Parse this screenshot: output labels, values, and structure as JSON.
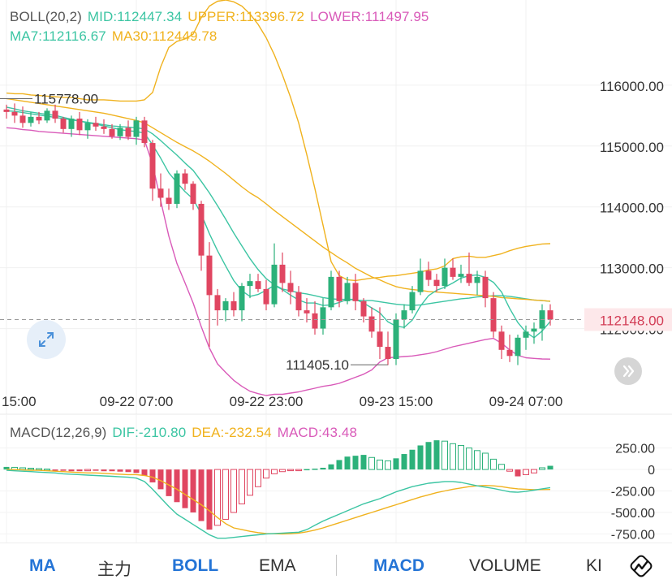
{
  "legend": {
    "boll_label": "BOLL(20,2)",
    "mid": "MID:112447.34",
    "upper": "UPPER:113396.72",
    "lower": "LOWER:111497.95",
    "ma7": "MA7:112116.67",
    "ma30": "MA30:112449.78",
    "macd_label": "MACD(12,26,9)",
    "dif": "DIF:-210.80",
    "dea": "DEA:-232.54",
    "macd": "MACD:43.48"
  },
  "annotations": {
    "high_label": "115778.00",
    "low_label": "111405.10",
    "current_price": "112148.00"
  },
  "tabs": {
    "ma": "MA",
    "main": "主力",
    "boll": "BOLL",
    "ema": "EMA",
    "macd": "MACD",
    "volume": "VOLUME",
    "kdj": "KI"
  },
  "icons": {
    "expand": "expand-arrows-icon",
    "scroll_right": "double-chevron-right-icon",
    "drawing": "drawing-tool-icon"
  },
  "colors": {
    "up": "#2cb17a",
    "down": "#e04661",
    "ma7": "#3cc5a3",
    "ma30": "#f0b21e",
    "upper": "#f0b21e",
    "mid": "#3cc5a3",
    "lower": "#d95ab9",
    "dif": "#3cc5a3",
    "dea": "#f0b21e",
    "accent": "#2474d6",
    "current_price_bg": "#fde8ea"
  },
  "chart_data": [
    {
      "type": "candlestick",
      "y_ticks": [
        "116000.00",
        "115000.00",
        "114000.00",
        "113000.00",
        "112000.00"
      ],
      "y_tick_values": [
        116000,
        115000,
        114000,
        113000,
        112000
      ],
      "ylim": [
        111100,
        117400
      ],
      "x_ticks": [
        "15:00",
        "09-22 07:00",
        "09-22 23:00",
        "09-23 15:00",
        "09-24 07:00"
      ],
      "x_tick_index": [
        0,
        16,
        32,
        48,
        64
      ],
      "current_price": 112148,
      "high_marker": 115778,
      "low_marker": 111405.1,
      "candles": [
        [
          115600,
          115680,
          115450,
          115560
        ],
        [
          115560,
          115700,
          115380,
          115500
        ],
        [
          115500,
          115650,
          115300,
          115380
        ],
        [
          115380,
          115560,
          115320,
          115480
        ],
        [
          115480,
          115560,
          115360,
          115420
        ],
        [
          115420,
          115620,
          115380,
          115580
        ],
        [
          115580,
          115680,
          115380,
          115450
        ],
        [
          115450,
          115480,
          115220,
          115280
        ],
        [
          115280,
          115500,
          115150,
          115450
        ],
        [
          115450,
          115560,
          115180,
          115260
        ],
        [
          115260,
          115440,
          115120,
          115380
        ],
        [
          115380,
          115480,
          115250,
          115320
        ],
        [
          115320,
          115440,
          115200,
          115280
        ],
        [
          115280,
          115360,
          115120,
          115160
        ],
        [
          115160,
          115360,
          115100,
          115300
        ],
        [
          115300,
          115420,
          115100,
          115150
        ],
        [
          115150,
          115480,
          115020,
          115420
        ],
        [
          115420,
          115480,
          114980,
          115050
        ],
        [
          115050,
          115100,
          114100,
          114300
        ],
        [
          114300,
          114550,
          114000,
          114150
        ],
        [
          114150,
          114300,
          113950,
          114050
        ],
        [
          114050,
          114600,
          113980,
          114550
        ],
        [
          114550,
          114620,
          114280,
          114380
        ],
        [
          114380,
          114420,
          113950,
          114050
        ],
        [
          114050,
          114100,
          112950,
          113200
        ],
        [
          113200,
          113420,
          111700,
          112550
        ],
        [
          112550,
          112650,
          112050,
          112300
        ],
        [
          112300,
          112500,
          112120,
          112450
        ],
        [
          112450,
          112600,
          112200,
          112300
        ],
        [
          112300,
          112750,
          112120,
          112700
        ],
        [
          112700,
          112900,
          112500,
          112780
        ],
        [
          112780,
          112900,
          112600,
          112650
        ],
        [
          112650,
          112800,
          112300,
          112400
        ],
        [
          112400,
          113400,
          112350,
          113050
        ],
        [
          113050,
          113250,
          112600,
          112750
        ],
        [
          112750,
          112950,
          112400,
          112600
        ],
        [
          112600,
          112700,
          112200,
          112300
        ],
        [
          112300,
          112500,
          112100,
          112250
        ],
        [
          112250,
          112450,
          111900,
          112000
        ],
        [
          112000,
          112500,
          111900,
          112350
        ],
        [
          112350,
          112950,
          112300,
          112850
        ],
        [
          112850,
          112950,
          112350,
          112450
        ],
        [
          112450,
          112850,
          112400,
          112750
        ],
        [
          112750,
          112900,
          112300,
          112450
        ],
        [
          112450,
          112500,
          112100,
          112200
        ],
        [
          112200,
          112350,
          111850,
          111950
        ],
        [
          111950,
          112350,
          111500,
          111700
        ],
        [
          111700,
          111950,
          111400,
          111500
        ],
        [
          111500,
          112250,
          111400,
          112150
        ],
        [
          112150,
          112400,
          112000,
          112300
        ],
        [
          112300,
          112700,
          112250,
          112600
        ],
        [
          112600,
          113150,
          112550,
          112950
        ],
        [
          112950,
          113100,
          112700,
          112800
        ],
        [
          112800,
          112900,
          112600,
          112700
        ],
        [
          112700,
          113150,
          112650,
          113000
        ],
        [
          113000,
          113150,
          112800,
          112850
        ],
        [
          112850,
          113050,
          112750,
          112900
        ],
        [
          112900,
          113250,
          112700,
          112750
        ],
        [
          112750,
          112950,
          112550,
          112850
        ],
        [
          112850,
          112950,
          112350,
          112500
        ],
        [
          112500,
          112600,
          111850,
          111950
        ],
        [
          111950,
          112050,
          111500,
          111650
        ],
        [
          111650,
          111900,
          111450,
          111550
        ],
        [
          111550,
          111900,
          111400,
          111850
        ],
        [
          111850,
          112050,
          111650,
          111950
        ],
        [
          111950,
          112100,
          111750,
          112000
        ],
        [
          112000,
          112400,
          111800,
          112300
        ],
        [
          112300,
          112400,
          112050,
          112148
        ]
      ],
      "ma7": [
        115640,
        115610,
        115580,
        115560,
        115540,
        115520,
        115505,
        115470,
        115440,
        115410,
        115380,
        115360,
        115330,
        115300,
        115270,
        115250,
        115240,
        115210,
        115020,
        114800,
        114560,
        114400,
        114250,
        114130,
        113880,
        113560,
        113280,
        113030,
        112790,
        112620,
        112530,
        112560,
        112630,
        112710,
        112640,
        112550,
        112470,
        112420,
        112420,
        112380,
        112390,
        112430,
        112480,
        112480,
        112420,
        112340,
        112260,
        112110,
        112040,
        112020,
        112140,
        112370,
        112540,
        112630,
        112680,
        112750,
        112830,
        112870,
        112880,
        112840,
        112760,
        112600,
        112330,
        112100,
        111940,
        111850,
        111960,
        112117
      ],
      "ma30": [
        115780,
        115760,
        115740,
        115720,
        115700,
        115680,
        115660,
        115640,
        115620,
        115600,
        115580,
        115560,
        115540,
        115510,
        115480,
        115450,
        115420,
        115380,
        115300,
        115220,
        115140,
        115060,
        114990,
        114920,
        114840,
        114750,
        114650,
        114550,
        114440,
        114330,
        114230,
        114150,
        114050,
        113940,
        113840,
        113740,
        113640,
        113540,
        113440,
        113340,
        113250,
        113160,
        113080,
        112990,
        112920,
        112850,
        112800,
        112740,
        112690,
        112660,
        112640,
        112630,
        112610,
        112600,
        112590,
        112580,
        112570,
        112560,
        112550,
        112540,
        112530,
        112510,
        112500,
        112490,
        112480,
        112470,
        112460,
        112450
      ],
      "upper": [
        115870,
        115860,
        115860,
        115840,
        115830,
        115820,
        115810,
        115800,
        115800,
        115780,
        115760,
        115760,
        115760,
        115750,
        115740,
        115740,
        115740,
        115760,
        115880,
        116300,
        116620,
        116720,
        116760,
        116840,
        117110,
        117300,
        117380,
        117400,
        117370,
        117300,
        117170,
        117000,
        116780,
        116500,
        116170,
        115800,
        115380,
        114860,
        114300,
        113700,
        113100,
        112870,
        112800,
        112790,
        112810,
        112830,
        112840,
        112860,
        112870,
        112890,
        112910,
        112930,
        112960,
        112980,
        113030,
        113150,
        113180,
        113190,
        113170,
        113170,
        113200,
        113230,
        113280,
        113320,
        113350,
        113370,
        113390,
        113396
      ],
      "mid": [
        115580,
        115570,
        115550,
        115530,
        115510,
        115490,
        115470,
        115450,
        115430,
        115410,
        115390,
        115370,
        115350,
        115330,
        115320,
        115310,
        115300,
        115280,
        115200,
        115090,
        114970,
        114850,
        114720,
        114600,
        114420,
        114230,
        114020,
        113800,
        113570,
        113360,
        113150,
        112970,
        112820,
        112720,
        112650,
        112620,
        112590,
        112570,
        112540,
        112510,
        112490,
        112480,
        112480,
        112470,
        112460,
        112460,
        112440,
        112420,
        112400,
        112390,
        112380,
        112390,
        112410,
        112430,
        112450,
        112470,
        112490,
        112500,
        112520,
        112530,
        112540,
        112540,
        112530,
        112510,
        112490,
        112470,
        112460,
        112447
      ],
      "lower": [
        115300,
        115290,
        115270,
        115260,
        115240,
        115230,
        115220,
        115210,
        115200,
        115190,
        115180,
        115170,
        115160,
        115150,
        115140,
        115130,
        115120,
        115100,
        114700,
        114100,
        113520,
        113070,
        112750,
        112420,
        112030,
        111680,
        111420,
        111280,
        111150,
        111050,
        110970,
        110930,
        110900,
        110920,
        110920,
        110940,
        110960,
        110990,
        111020,
        111050,
        111070,
        111100,
        111150,
        111200,
        111250,
        111320,
        111450,
        111520,
        111530,
        111540,
        111550,
        111570,
        111590,
        111620,
        111660,
        111700,
        111730,
        111760,
        111790,
        111820,
        111840,
        111760,
        111650,
        111560,
        111520,
        111510,
        111500,
        111498
      ]
    },
    {
      "type": "macd",
      "y_ticks": [
        "250.00",
        "0",
        "-250.00",
        "-500.00",
        "-750.00"
      ],
      "y_tick_values": [
        250,
        0,
        -250,
        -500,
        -750
      ],
      "ylim": [
        -850,
        360
      ],
      "hist": [
        30,
        25,
        20,
        15,
        10,
        5,
        -5,
        -15,
        -20,
        -20,
        -15,
        -15,
        -20,
        -20,
        -25,
        -30,
        -40,
        -70,
        -150,
        -230,
        -310,
        -380,
        -450,
        -500,
        -600,
        -700,
        -650,
        -580,
        -500,
        -400,
        -300,
        -200,
        -100,
        -50,
        -25,
        -10,
        -5,
        5,
        10,
        20,
        60,
        110,
        150,
        160,
        170,
        140,
        110,
        100,
        130,
        180,
        230,
        280,
        320,
        340,
        330,
        300,
        280,
        250,
        220,
        190,
        120,
        60,
        -20,
        -80,
        -60,
        -40,
        20,
        43
      ],
      "dif": [
        -10,
        -15,
        -20,
        -25,
        -30,
        -35,
        -40,
        -50,
        -55,
        -60,
        -65,
        -70,
        -75,
        -80,
        -85,
        -90,
        -100,
        -140,
        -230,
        -330,
        -430,
        -520,
        -580,
        -640,
        -700,
        -760,
        -800,
        -800,
        -790,
        -780,
        -770,
        -760,
        -750,
        -745,
        -740,
        -735,
        -730,
        -700,
        -650,
        -600,
        -560,
        -520,
        -480,
        -440,
        -400,
        -370,
        -340,
        -300,
        -260,
        -230,
        -200,
        -180,
        -160,
        -150,
        -140,
        -140,
        -150,
        -170,
        -190,
        -205,
        -220,
        -240,
        -260,
        -265,
        -255,
        -240,
        -225,
        -211
      ],
      "dea": [
        0,
        0,
        -5,
        -10,
        -10,
        -15,
        -20,
        -25,
        -30,
        -35,
        -40,
        -40,
        -45,
        -50,
        -55,
        -60,
        -60,
        -70,
        -90,
        -130,
        -180,
        -230,
        -290,
        -350,
        -410,
        -480,
        -560,
        -630,
        -680,
        -700,
        -720,
        -735,
        -745,
        -748,
        -750,
        -748,
        -740,
        -725,
        -705,
        -680,
        -650,
        -620,
        -590,
        -560,
        -530,
        -500,
        -470,
        -440,
        -410,
        -380,
        -350,
        -320,
        -295,
        -270,
        -250,
        -230,
        -215,
        -200,
        -190,
        -185,
        -190,
        -200,
        -215,
        -225,
        -230,
        -235,
        -234,
        -233
      ]
    }
  ]
}
